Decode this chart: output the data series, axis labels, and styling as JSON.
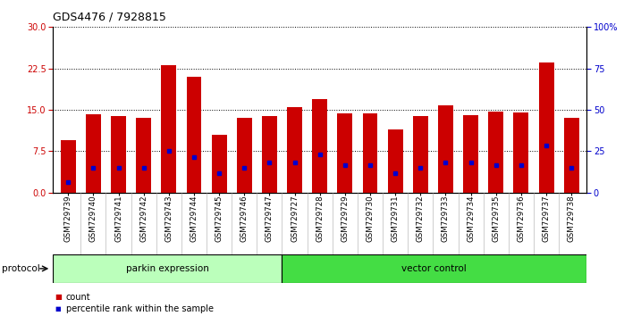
{
  "title": "GDS4476 / 7928815",
  "samples": [
    "GSM729739",
    "GSM729740",
    "GSM729741",
    "GSM729742",
    "GSM729743",
    "GSM729744",
    "GSM729745",
    "GSM729746",
    "GSM729747",
    "GSM729727",
    "GSM729728",
    "GSM729729",
    "GSM729730",
    "GSM729731",
    "GSM729732",
    "GSM729733",
    "GSM729734",
    "GSM729735",
    "GSM729736",
    "GSM729737",
    "GSM729738"
  ],
  "counts": [
    9.5,
    14.2,
    13.8,
    13.5,
    23.0,
    21.0,
    10.5,
    13.5,
    13.8,
    15.5,
    17.0,
    14.3,
    14.3,
    11.5,
    13.8,
    15.8,
    14.0,
    14.7,
    14.5,
    23.5,
    13.5
  ],
  "percentiles": [
    2.0,
    4.5,
    4.5,
    4.5,
    7.5,
    6.5,
    3.5,
    4.5,
    5.5,
    5.5,
    7.0,
    5.0,
    5.0,
    3.5,
    4.5,
    5.5,
    5.5,
    5.0,
    5.0,
    8.5,
    4.5
  ],
  "parkin_count": 9,
  "vector_count": 12,
  "ylim_left": [
    0,
    30
  ],
  "ylim_right": [
    0,
    100
  ],
  "yticks_left": [
    0,
    7.5,
    15,
    22.5,
    30
  ],
  "yticks_right": [
    0,
    25,
    50,
    75,
    100
  ],
  "bar_color": "#cc0000",
  "percentile_color": "#0000cc",
  "background_color": "#ffffff",
  "parkin_color": "#bbffbb",
  "vector_color": "#44dd44",
  "xticklabel_bg": "#cccccc",
  "grid_color": "#000000"
}
